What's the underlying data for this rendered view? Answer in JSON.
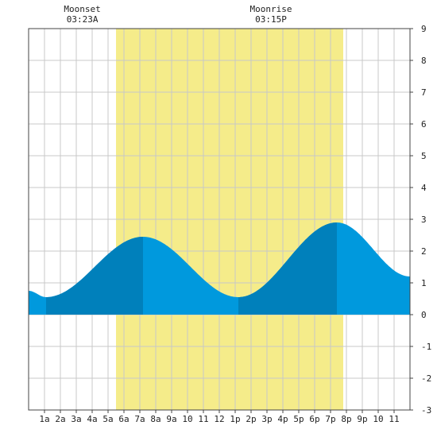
{
  "chart_data": {
    "type": "area",
    "title": "",
    "xlabel": "",
    "ylabel": "",
    "ylim": [
      -3,
      9
    ],
    "y_ticks": [
      -3,
      -2,
      -1,
      0,
      1,
      2,
      3,
      4,
      5,
      6,
      7,
      8,
      9
    ],
    "x_range_hours": [
      0,
      24
    ],
    "x_tick_labels": [
      "1a",
      "2a",
      "3a",
      "4a",
      "5a",
      "6a",
      "7a",
      "8a",
      "9a",
      "10",
      "11",
      "12",
      "1p",
      "2p",
      "3p",
      "4p",
      "5p",
      "6p",
      "7p",
      "8p",
      "9p",
      "10",
      "11"
    ],
    "grid": true,
    "daylight_hours": [
      5.5,
      19.8
    ],
    "moon_events": [
      {
        "label": "Moonset",
        "time": "03:23A",
        "hour": 3.38
      },
      {
        "label": "Moonrise",
        "time": "03:15P",
        "hour": 15.25
      }
    ],
    "tide_extremes": [
      {
        "hour": 1.1,
        "value": 0.55,
        "kind": "low"
      },
      {
        "hour": 7.2,
        "value": 2.45,
        "kind": "high"
      },
      {
        "hour": 13.2,
        "value": 0.55,
        "kind": "low"
      },
      {
        "hour": 19.4,
        "value": 2.9,
        "kind": "high"
      }
    ],
    "series": [
      {
        "x": [
          0,
          1.1,
          7.2,
          13.2,
          19.4,
          24
        ],
        "values": [
          0.75,
          0.55,
          2.45,
          0.55,
          2.9,
          1.2
        ]
      }
    ],
    "colors": {
      "daylight": "#f5ec8a",
      "tide_light": "#0099dd",
      "tide_dark": "#0080bb",
      "grid": "#c8c8c8",
      "axis": "#444444"
    }
  }
}
